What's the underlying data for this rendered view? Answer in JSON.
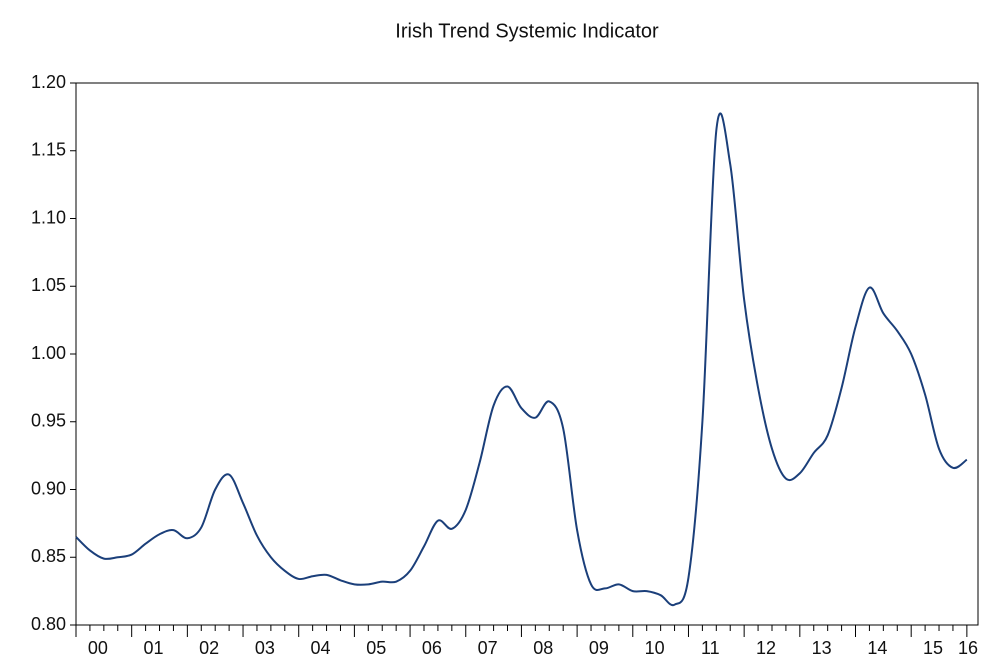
{
  "chart_data": {
    "type": "line",
    "title": "Irish Trend Systemic Indicator",
    "categories": [
      "00",
      null,
      null,
      null,
      "01",
      null,
      null,
      null,
      "02",
      null,
      null,
      null,
      "03",
      null,
      null,
      null,
      "04",
      null,
      null,
      null,
      "05",
      null,
      null,
      null,
      "06",
      null,
      null,
      null,
      "07",
      null,
      null,
      null,
      "08",
      null,
      null,
      null,
      "09",
      null,
      null,
      null,
      "10",
      null,
      null,
      null,
      "11",
      null,
      null,
      null,
      "12",
      null,
      null,
      null,
      "13",
      null,
      null,
      null,
      "14",
      null,
      null,
      null,
      "15",
      null,
      null,
      null,
      "16"
    ],
    "series": [
      {
        "name": "Irish Trend Systemic Indicator",
        "color": "#1b3f7a",
        "values": [
          0.865,
          0.855,
          0.849,
          0.85,
          0.852,
          0.86,
          0.867,
          0.87,
          0.864,
          0.872,
          0.9,
          0.911,
          0.89,
          0.866,
          0.85,
          0.84,
          0.834,
          0.836,
          0.837,
          0.833,
          0.83,
          0.83,
          0.832,
          0.832,
          0.84,
          0.858,
          0.877,
          0.871,
          0.885,
          0.92,
          0.962,
          0.976,
          0.96,
          0.953,
          0.965,
          0.945,
          0.87,
          0.83,
          0.827,
          0.83,
          0.825,
          0.825,
          0.822,
          0.815,
          0.835,
          0.95,
          1.165,
          1.14,
          1.04,
          0.975,
          0.93,
          0.908,
          0.912,
          0.927,
          0.94,
          0.975,
          1.02,
          1.049,
          1.03,
          1.017,
          1.0,
          0.97,
          0.93,
          0.916,
          0.922
        ]
      }
    ],
    "ylim": [
      0.8,
      1.2
    ],
    "yticks": [
      {
        "value": 0.8,
        "label": "0.80"
      },
      {
        "value": 0.85,
        "label": "0.85"
      },
      {
        "value": 0.9,
        "label": "0.90"
      },
      {
        "value": 0.95,
        "label": "0.95"
      },
      {
        "value": 1.0,
        "label": "1.00"
      },
      {
        "value": 1.05,
        "label": "1.05"
      },
      {
        "value": 1.1,
        "label": "1.10"
      },
      {
        "value": 1.15,
        "label": "1.15"
      },
      {
        "value": 1.2,
        "label": "1.20"
      }
    ],
    "grid": false
  }
}
